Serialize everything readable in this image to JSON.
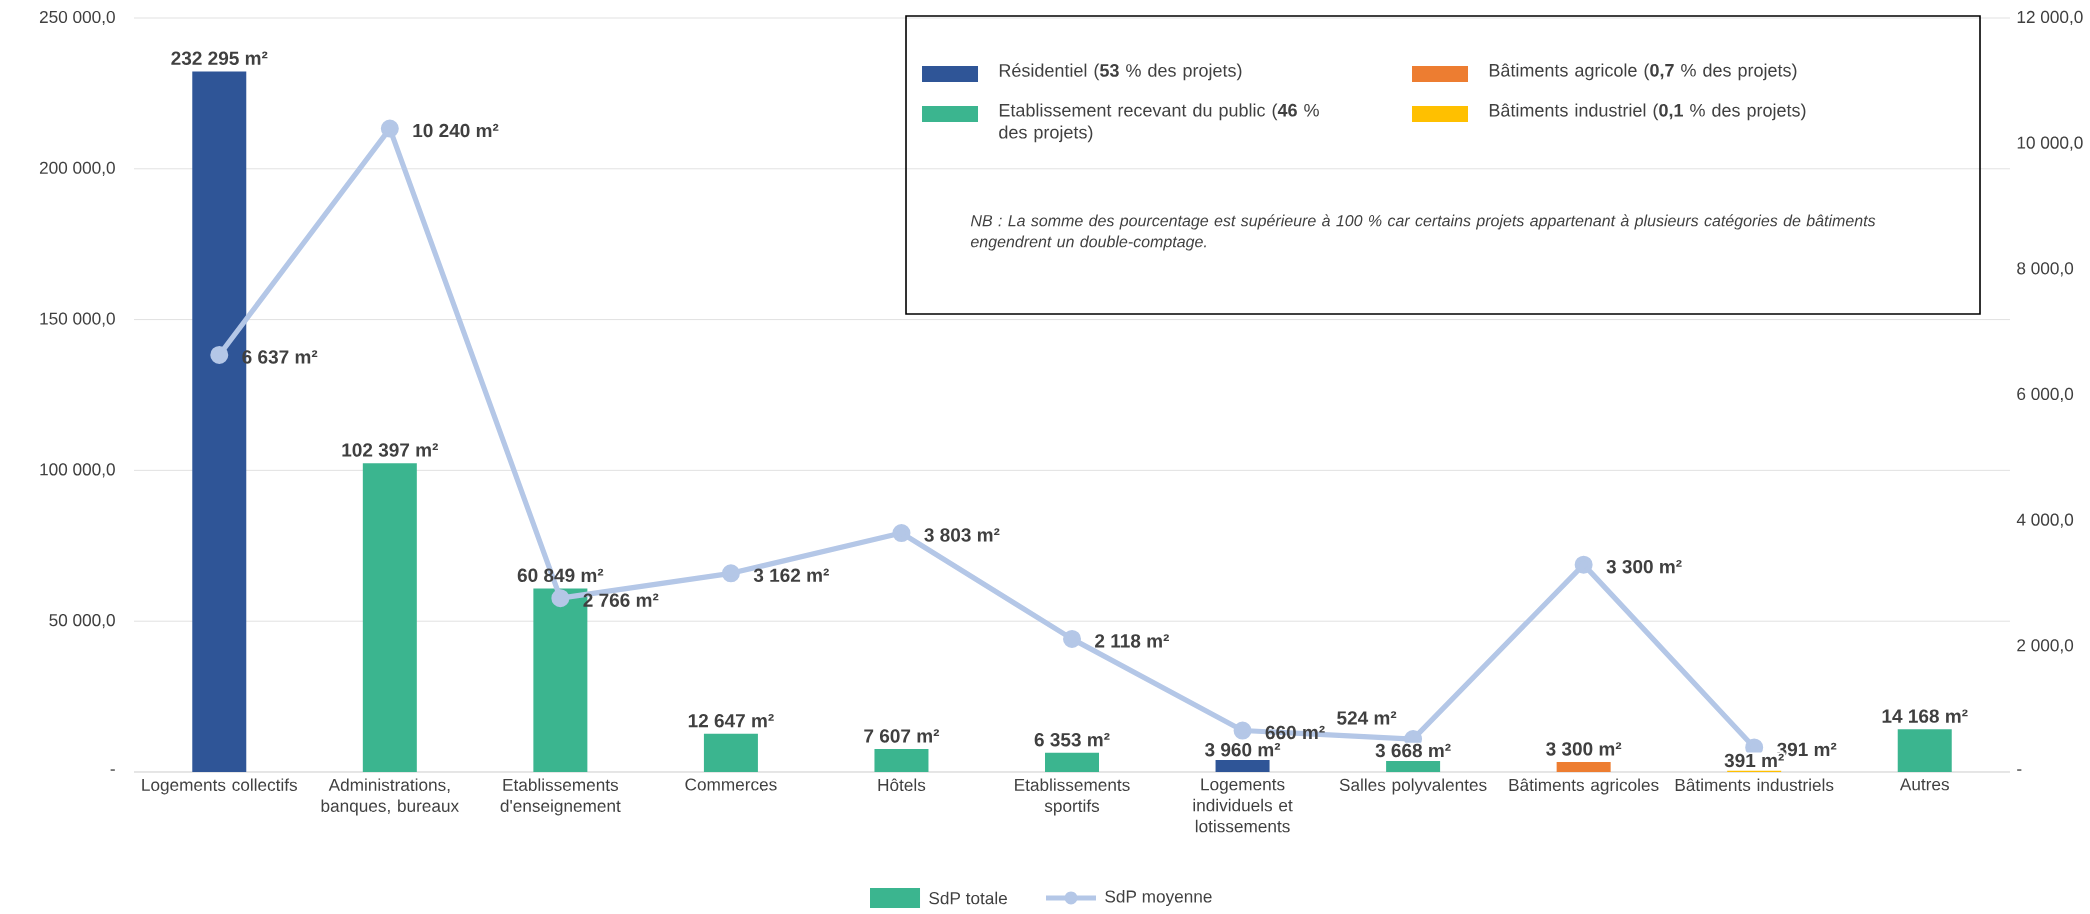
{
  "chart_data": {
    "type": "bar",
    "categories": [
      "Logements collectifs",
      "Administrations, banques, bureaux",
      "Etablissements d'enseignement",
      "Commerces",
      "Hôtels",
      "Etablissements sportifs",
      "Logements individuels et lotissements",
      "Salles polyvalentes",
      "Bâtiments agricoles",
      "Bâtiments industriels",
      "Autres"
    ],
    "series": [
      {
        "name": "SdP totale",
        "color": "#3bb58f",
        "colors": [
          "#2f5597",
          "#3bb58f",
          "#3bb58f",
          "#3bb58f",
          "#3bb58f",
          "#3bb58f",
          "#2f5597",
          "#3bb58f",
          "#ed7d31",
          "#ffc000",
          "#3bb58f"
        ],
        "values": [
          232295,
          102397,
          60849,
          12647,
          7607,
          6353,
          3960,
          3668,
          3300,
          391,
          14168
        ],
        "value_labels": [
          "232 295 m²",
          "102 397 m²",
          "60 849 m²",
          "12 647 m²",
          "7 607 m²",
          "6 353 m²",
          "3 960 m²",
          "3 668 m²",
          "3 300 m²",
          "391 m²",
          "14 168 m²"
        ]
      },
      {
        "name": "SdP moyenne",
        "type": "line",
        "axis": "y2",
        "color": "#b4c7e7",
        "marker": "circle",
        "values": [
          6637,
          10240,
          2766,
          3162,
          3803,
          2118,
          660,
          524,
          3300,
          391,
          null
        ],
        "value_labels": [
          "6 637 m²",
          "10 240 m²",
          "2 766 m²",
          "3 162 m²",
          "3 803 m²",
          "2 118 m²",
          "660 m²",
          "524 m²",
          "3 300 m²",
          "391 m²",
          null
        ]
      }
    ],
    "ylim": [
      0,
      250000
    ],
    "yticks": [
      {
        "value": 0,
        "label": "-"
      },
      {
        "value": 50000,
        "label": "50 000,0"
      },
      {
        "value": 100000,
        "label": "100 000,0"
      },
      {
        "value": 150000,
        "label": "150 000,0"
      },
      {
        "value": 200000,
        "label": "200 000,0"
      },
      {
        "value": 250000,
        "label": "250 000,0"
      }
    ],
    "y2lim": [
      0,
      12000
    ],
    "y2ticks": [
      {
        "value": 0,
        "label": "-"
      },
      {
        "value": 2000,
        "label": "2 000,0"
      },
      {
        "value": 4000,
        "label": "4 000,0"
      },
      {
        "value": 6000,
        "label": "6 000,0"
      },
      {
        "value": 8000,
        "label": "8 000,0"
      },
      {
        "value": 10000,
        "label": "10 000,0"
      },
      {
        "value": 12000,
        "label": "12 000,0"
      }
    ],
    "grid": "y",
    "legend": "bottom",
    "annotations": [
      "Résidentiel (**53** % des projets)",
      "Etablissement recevant du public (**46** % des projets)",
      "Bâtiments agricole (**0,7** % des projets)",
      "Bâtiments industriel (**0,1** % des projets)",
      "NB : La somme des pourcentage est supérieure à 100 % car certains projets appartenant à plusieurs catégories de bâtiments engendrent un double-comptage."
    ]
  }
}
